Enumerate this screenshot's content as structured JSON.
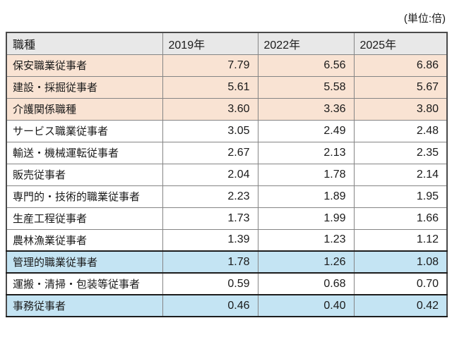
{
  "unit_label": "(単位:倍)",
  "chart_data": {
    "type": "table",
    "title": "",
    "unit": "(単位:倍)",
    "columns": [
      "職種",
      "2019年",
      "2022年",
      "2025年"
    ],
    "rows": [
      {
        "label": "保安職業従事者",
        "values": [
          7.79,
          6.56,
          6.86
        ],
        "highlight": "pink"
      },
      {
        "label": "建設・採掘従事者",
        "values": [
          5.61,
          5.58,
          5.67
        ],
        "highlight": "pink"
      },
      {
        "label": "介護関係職種",
        "values": [
          3.6,
          3.36,
          3.8
        ],
        "highlight": "pink"
      },
      {
        "label": "サービス職業従事者",
        "values": [
          3.05,
          2.49,
          2.48
        ],
        "highlight": "none"
      },
      {
        "label": "輸送・機械運転従事者",
        "values": [
          2.67,
          2.13,
          2.35
        ],
        "highlight": "none"
      },
      {
        "label": "販売従事者",
        "values": [
          2.04,
          1.78,
          2.14
        ],
        "highlight": "none"
      },
      {
        "label": "専門的・技術的職業従事者",
        "values": [
          2.23,
          1.89,
          1.95
        ],
        "highlight": "none"
      },
      {
        "label": "生産工程従事者",
        "values": [
          1.73,
          1.99,
          1.66
        ],
        "highlight": "none"
      },
      {
        "label": "農林漁業従事者",
        "values": [
          1.39,
          1.23,
          1.12
        ],
        "highlight": "none"
      },
      {
        "label": "管理的職業従事者",
        "values": [
          1.78,
          1.26,
          1.08
        ],
        "highlight": "blue"
      },
      {
        "label": "運搬・清掃・包装等従事者",
        "values": [
          0.59,
          0.68,
          0.7
        ],
        "highlight": "none"
      },
      {
        "label": "事務従事者",
        "values": [
          0.46,
          0.4,
          0.42
        ],
        "highlight": "blue"
      }
    ],
    "value_format_decimals": 2
  },
  "colors": {
    "pink": "#f9e3d3",
    "blue": "#c4e4f3",
    "header_bg": "#e8e8e8",
    "grid_border": "#858585",
    "outer_border": "#4a4a4a",
    "dark_border": "#1c1c1c",
    "text": "#1a1a1a"
  }
}
